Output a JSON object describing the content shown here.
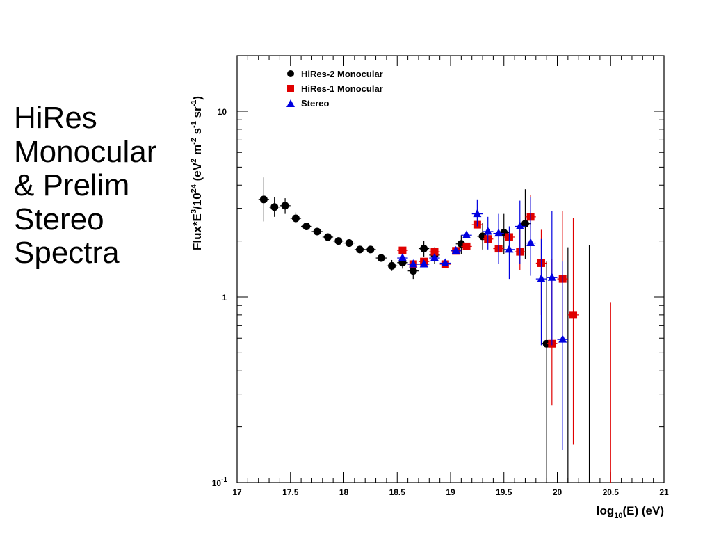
{
  "slide": {
    "title_lines": [
      "HiRes",
      "Monocular",
      "& Prelim",
      "Stereo",
      "Spectra"
    ]
  },
  "chart_data": {
    "type": "scatter",
    "title": "",
    "xlabel": "log10(E) (eV)",
    "ylabel": "Flux*E^3/10^24 (eV^2 m^-2 s^-1 sr^-1)",
    "xlim": [
      17,
      21
    ],
    "ylim": [
      0.1,
      20
    ],
    "y_scale": "log",
    "grid": false,
    "legend_position": "top-left",
    "x_ticks": [
      "17",
      "17.5",
      "18",
      "18.5",
      "19",
      "19.5",
      "20",
      "20.5",
      "21"
    ],
    "y_ticks": [
      {
        "value": 10,
        "base": "10",
        "exp": ""
      },
      {
        "value": 1,
        "base": "1",
        "exp": ""
      },
      {
        "value": 0.1,
        "base": "10",
        "exp": "-1"
      }
    ],
    "series": [
      {
        "name": "HiRes-2 Monocular",
        "marker": "circle",
        "color": "#000000",
        "points": [
          {
            "x": 17.25,
            "y": 3.35,
            "lo": 2.55,
            "hi": 4.4
          },
          {
            "x": 17.35,
            "y": 3.05,
            "lo": 2.7,
            "hi": 3.45
          },
          {
            "x": 17.45,
            "y": 3.1,
            "lo": 2.8,
            "hi": 3.4
          },
          {
            "x": 17.55,
            "y": 2.65,
            "lo": 2.5,
            "hi": 2.85
          },
          {
            "x": 17.65,
            "y": 2.4,
            "lo": 2.3,
            "hi": 2.5
          },
          {
            "x": 17.75,
            "y": 2.25
          },
          {
            "x": 17.85,
            "y": 2.1
          },
          {
            "x": 17.95,
            "y": 2.0
          },
          {
            "x": 18.05,
            "y": 1.95
          },
          {
            "x": 18.15,
            "y": 1.8
          },
          {
            "x": 18.25,
            "y": 1.8
          },
          {
            "x": 18.35,
            "y": 1.62,
            "lo": 1.55,
            "hi": 1.7
          },
          {
            "x": 18.45,
            "y": 1.47,
            "lo": 1.38,
            "hi": 1.58
          },
          {
            "x": 18.55,
            "y": 1.53,
            "lo": 1.42,
            "hi": 1.65
          },
          {
            "x": 18.65,
            "y": 1.38,
            "lo": 1.25,
            "hi": 1.5
          },
          {
            "x": 18.75,
            "y": 1.82,
            "lo": 1.65,
            "hi": 2.0
          },
          {
            "x": 18.85,
            "y": 1.68,
            "lo": 1.5,
            "hi": 1.85
          },
          {
            "x": 19.1,
            "y": 1.93,
            "lo": 1.7,
            "hi": 2.15
          },
          {
            "x": 19.3,
            "y": 2.12,
            "lo": 1.8,
            "hi": 2.5
          },
          {
            "x": 19.5,
            "y": 2.22,
            "lo": 1.7,
            "hi": 2.8
          },
          {
            "x": 19.7,
            "y": 2.48,
            "lo": 1.6,
            "hi": 3.8
          },
          {
            "x": 19.9,
            "y": 0.56,
            "lo": 0.1,
            "hi": 1.55
          },
          {
            "x": 20.1,
            "y": null,
            "lo": 0.1,
            "hi": 1.85
          },
          {
            "x": 20.3,
            "y": null,
            "lo": 0.1,
            "hi": 1.9
          }
        ]
      },
      {
        "name": "HiRes-1 Monocular",
        "marker": "square",
        "color": "#e00000",
        "points": [
          {
            "x": 18.55,
            "y": 1.78
          },
          {
            "x": 18.65,
            "y": 1.5
          },
          {
            "x": 18.75,
            "y": 1.55
          },
          {
            "x": 18.85,
            "y": 1.75
          },
          {
            "x": 18.95,
            "y": 1.5
          },
          {
            "x": 19.05,
            "y": 1.77
          },
          {
            "x": 19.15,
            "y": 1.87
          },
          {
            "x": 19.25,
            "y": 2.45
          },
          {
            "x": 19.35,
            "y": 2.05
          },
          {
            "x": 19.45,
            "y": 1.82
          },
          {
            "x": 19.55,
            "y": 2.1
          },
          {
            "x": 19.65,
            "y": 1.75,
            "lo": 1.4,
            "hi": 2.3
          },
          {
            "x": 19.75,
            "y": 2.7,
            "lo": 1.9,
            "hi": 3.55
          },
          {
            "x": 19.85,
            "y": 1.52,
            "lo": 0.8,
            "hi": 2.3
          },
          {
            "x": 19.95,
            "y": 0.56,
            "lo": 0.26,
            "hi": 1.6
          },
          {
            "x": 20.05,
            "y": 1.25,
            "lo": 0.6,
            "hi": 2.9
          },
          {
            "x": 20.15,
            "y": 0.8,
            "lo": 0.16,
            "hi": 2.65
          },
          {
            "x": 20.5,
            "y": null,
            "lo": 0.1,
            "hi": 0.93
          }
        ]
      },
      {
        "name": "Stereo",
        "marker": "triangle",
        "color": "#0000e0",
        "points": [
          {
            "x": 18.55,
            "y": 1.62
          },
          {
            "x": 18.65,
            "y": 1.5
          },
          {
            "x": 18.75,
            "y": 1.5
          },
          {
            "x": 18.85,
            "y": 1.62
          },
          {
            "x": 18.95,
            "y": 1.52
          },
          {
            "x": 19.05,
            "y": 1.77
          },
          {
            "x": 19.15,
            "y": 2.15
          },
          {
            "x": 19.25,
            "y": 2.8,
            "lo": 2.4,
            "hi": 3.35
          },
          {
            "x": 19.35,
            "y": 2.25,
            "lo": 1.8,
            "hi": 2.7
          },
          {
            "x": 19.45,
            "y": 2.2,
            "lo": 1.5,
            "hi": 2.8
          },
          {
            "x": 19.55,
            "y": 1.8,
            "lo": 1.25,
            "hi": 2.4
          },
          {
            "x": 19.65,
            "y": 2.4,
            "lo": 1.5,
            "hi": 3.3
          },
          {
            "x": 19.75,
            "y": 1.95,
            "lo": 1.3,
            "hi": 3.45
          },
          {
            "x": 19.85,
            "y": 1.25,
            "lo": 0.55,
            "hi": 2.05
          },
          {
            "x": 19.95,
            "y": 1.27,
            "lo": 0.55,
            "hi": 2.9
          },
          {
            "x": 20.05,
            "y": 0.59,
            "lo": 0.15,
            "hi": 1.55
          }
        ]
      }
    ]
  }
}
